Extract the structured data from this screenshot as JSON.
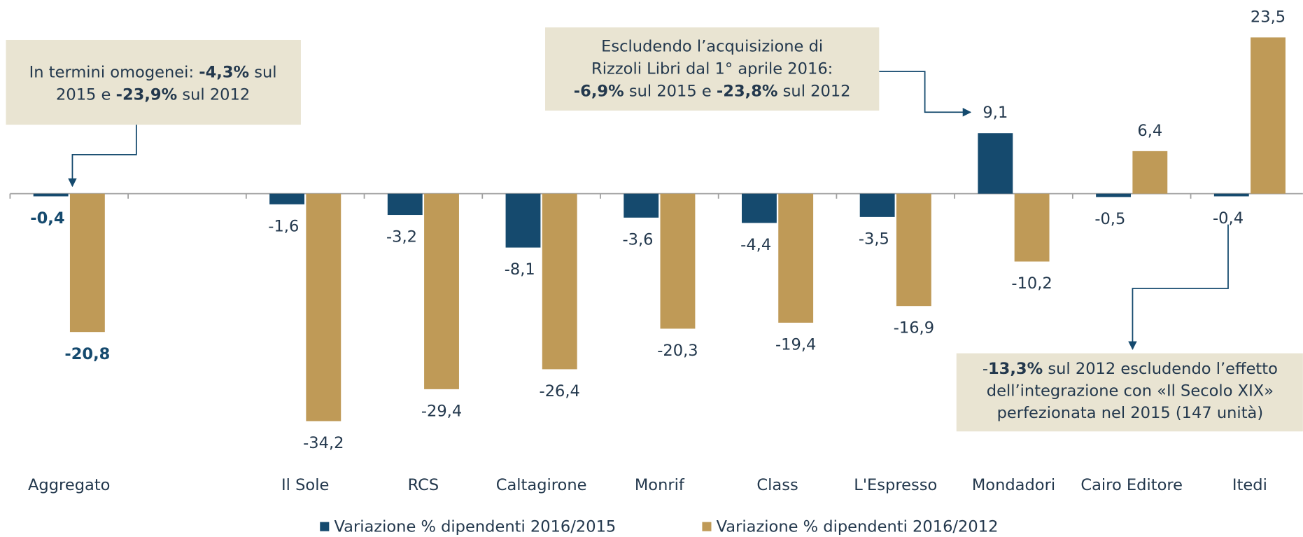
{
  "chart_data": {
    "type": "bar",
    "categories": [
      "Aggregato",
      null,
      "Il Sole",
      "RCS",
      "Caltagirone",
      "Monrif",
      "Class",
      "L'Espresso",
      "Mondadori",
      "Cairo Editore",
      "Itedi"
    ],
    "series": [
      {
        "name": "Variazione % dipendenti 2016/2015",
        "color": "#154a6e",
        "values": [
          -0.4,
          null,
          -1.6,
          -3.2,
          -8.1,
          -3.6,
          -4.4,
          -3.5,
          9.1,
          -0.5,
          -0.4
        ],
        "value_labels": [
          "-0,4",
          null,
          "-1,6",
          "-3,2",
          "-8,1",
          "-3,6",
          "-4,4",
          "-3,5",
          "9,1",
          "-0,5",
          "-0,4"
        ]
      },
      {
        "name": "Variazione % dipendenti 2016/2012",
        "color": "#bf9a57",
        "values": [
          -20.8,
          null,
          -34.2,
          -29.4,
          -26.4,
          -20.3,
          -19.4,
          -16.9,
          -10.2,
          6.4,
          23.5
        ],
        "value_labels": [
          "-20,8",
          null,
          "-34,2",
          "-29,4",
          "-26,4",
          "-20,3",
          "-19,4",
          "-16,9",
          "-10,2",
          "6,4",
          "23,5"
        ]
      }
    ],
    "emphasized_category": "Aggregato",
    "ylim": [
      -37,
      29
    ],
    "legend": "bottom",
    "annotations": [
      {
        "lines": [
          [
            {
              "text": "In termini omogenei: "
            },
            {
              "text": "-4,3%",
              "bold": true
            },
            {
              "text": " sul"
            }
          ],
          [
            {
              "text": "2015 e "
            },
            {
              "text": "-23,9%",
              "bold": true
            },
            {
              "text": " sul 2012"
            }
          ]
        ]
      },
      {
        "lines": [
          [
            {
              "text": "Escludendo l’acquisizione di"
            }
          ],
          [
            {
              "text": "Rizzoli Libri dal 1° aprile 2016:"
            }
          ],
          [
            {
              "text": "-6,9%",
              "bold": true
            },
            {
              "text": " sul 2015 e "
            },
            {
              "text": "-23,8%",
              "bold": true
            },
            {
              "text": " sul 2012"
            }
          ]
        ]
      },
      {
        "lines": [
          [
            {
              "text": "-"
            },
            {
              "text": "13,3%",
              "bold": true
            },
            {
              "text": " sul 2012 escludendo l’effetto"
            }
          ],
          [
            {
              "text": "dell’integrazione con «Il Secolo XIX»"
            }
          ],
          [
            {
              "text": "perfezionata nel 2015 (147 unità)"
            }
          ]
        ]
      }
    ]
  }
}
